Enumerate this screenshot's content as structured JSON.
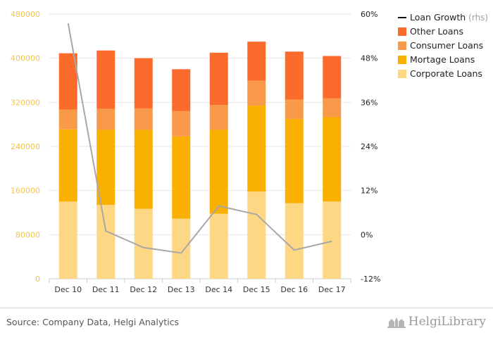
{
  "chart_data": {
    "type": "bar",
    "stacked": true,
    "categories": [
      "Dec 10",
      "Dec 11",
      "Dec 12",
      "Dec 13",
      "Dec 14",
      "Dec 15",
      "Dec 16",
      "Dec 17"
    ],
    "series": [
      {
        "name": "Corporate Loans",
        "color": "#fdd784",
        "values": [
          140000,
          134000,
          127000,
          109000,
          118000,
          158000,
          137000,
          140000
        ]
      },
      {
        "name": "Mortage Loans",
        "color": "#f9b000",
        "values": [
          131000,
          136000,
          143000,
          149000,
          152000,
          156000,
          153000,
          153000
        ]
      },
      {
        "name": "Consumer Loans",
        "color": "#f89a4a",
        "values": [
          36000,
          38000,
          39000,
          46000,
          45000,
          45000,
          35000,
          34000
        ]
      },
      {
        "name": "Other Loans",
        "color": "#fb6b2b",
        "values": [
          102000,
          106000,
          91000,
          76000,
          95000,
          71000,
          87000,
          77000
        ]
      }
    ],
    "line_series": {
      "name": "Loan Growth",
      "name_suffix": "(rhs)",
      "color": "#a8a8a8",
      "legend_color": "#111111",
      "axis": "right",
      "values": [
        57.5,
        1.0,
        -3.5,
        -5.0,
        7.8,
        5.5,
        -4.2,
        -1.8
      ]
    },
    "y_left": {
      "min": 0,
      "max": 480000,
      "ticks": [
        "0",
        "80000",
        "160000",
        "240000",
        "320000",
        "400000",
        "480000"
      ],
      "tick_values": [
        0,
        80000,
        160000,
        240000,
        320000,
        400000,
        480000
      ]
    },
    "y_right": {
      "min": -12,
      "max": 60,
      "ticks": [
        "-12%",
        "0%",
        "12%",
        "24%",
        "36%",
        "48%",
        "60%"
      ],
      "tick_values": [
        -12,
        0,
        12,
        24,
        36,
        48,
        60
      ]
    },
    "legend_position": "top-right",
    "grid": true
  },
  "footer": {
    "source": "Source: Company Data, Helgi Analytics",
    "brand": "HelgiLibrary"
  }
}
